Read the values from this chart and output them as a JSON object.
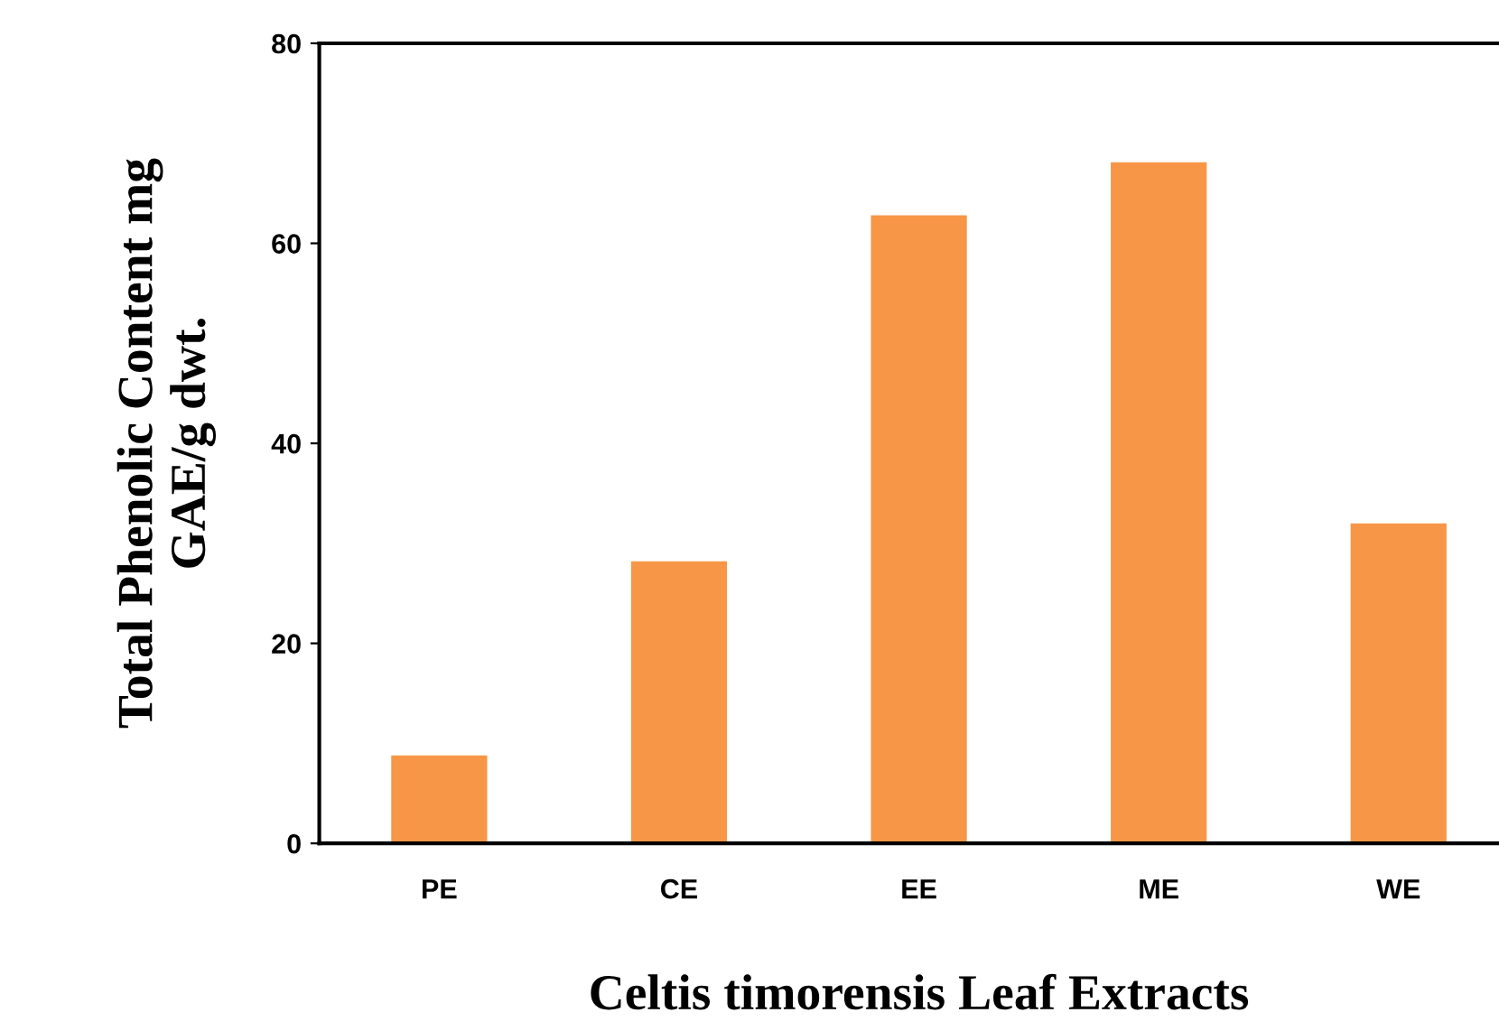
{
  "chart_data": {
    "type": "bar",
    "xlabel": "Celtis timorensis Leaf Extracts",
    "ylabel": "Total Phenolic Content mg\nGAE/g dwt.",
    "categories": [
      "PE",
      "CE",
      "EE",
      "ME",
      "WE"
    ],
    "values": [
      8.8,
      28.2,
      62.8,
      68.1,
      32.0
    ],
    "color": "#f79646",
    "ylim": [
      0,
      80
    ],
    "yticks": [
      0,
      20,
      40,
      60,
      80
    ],
    "grid": false
  }
}
